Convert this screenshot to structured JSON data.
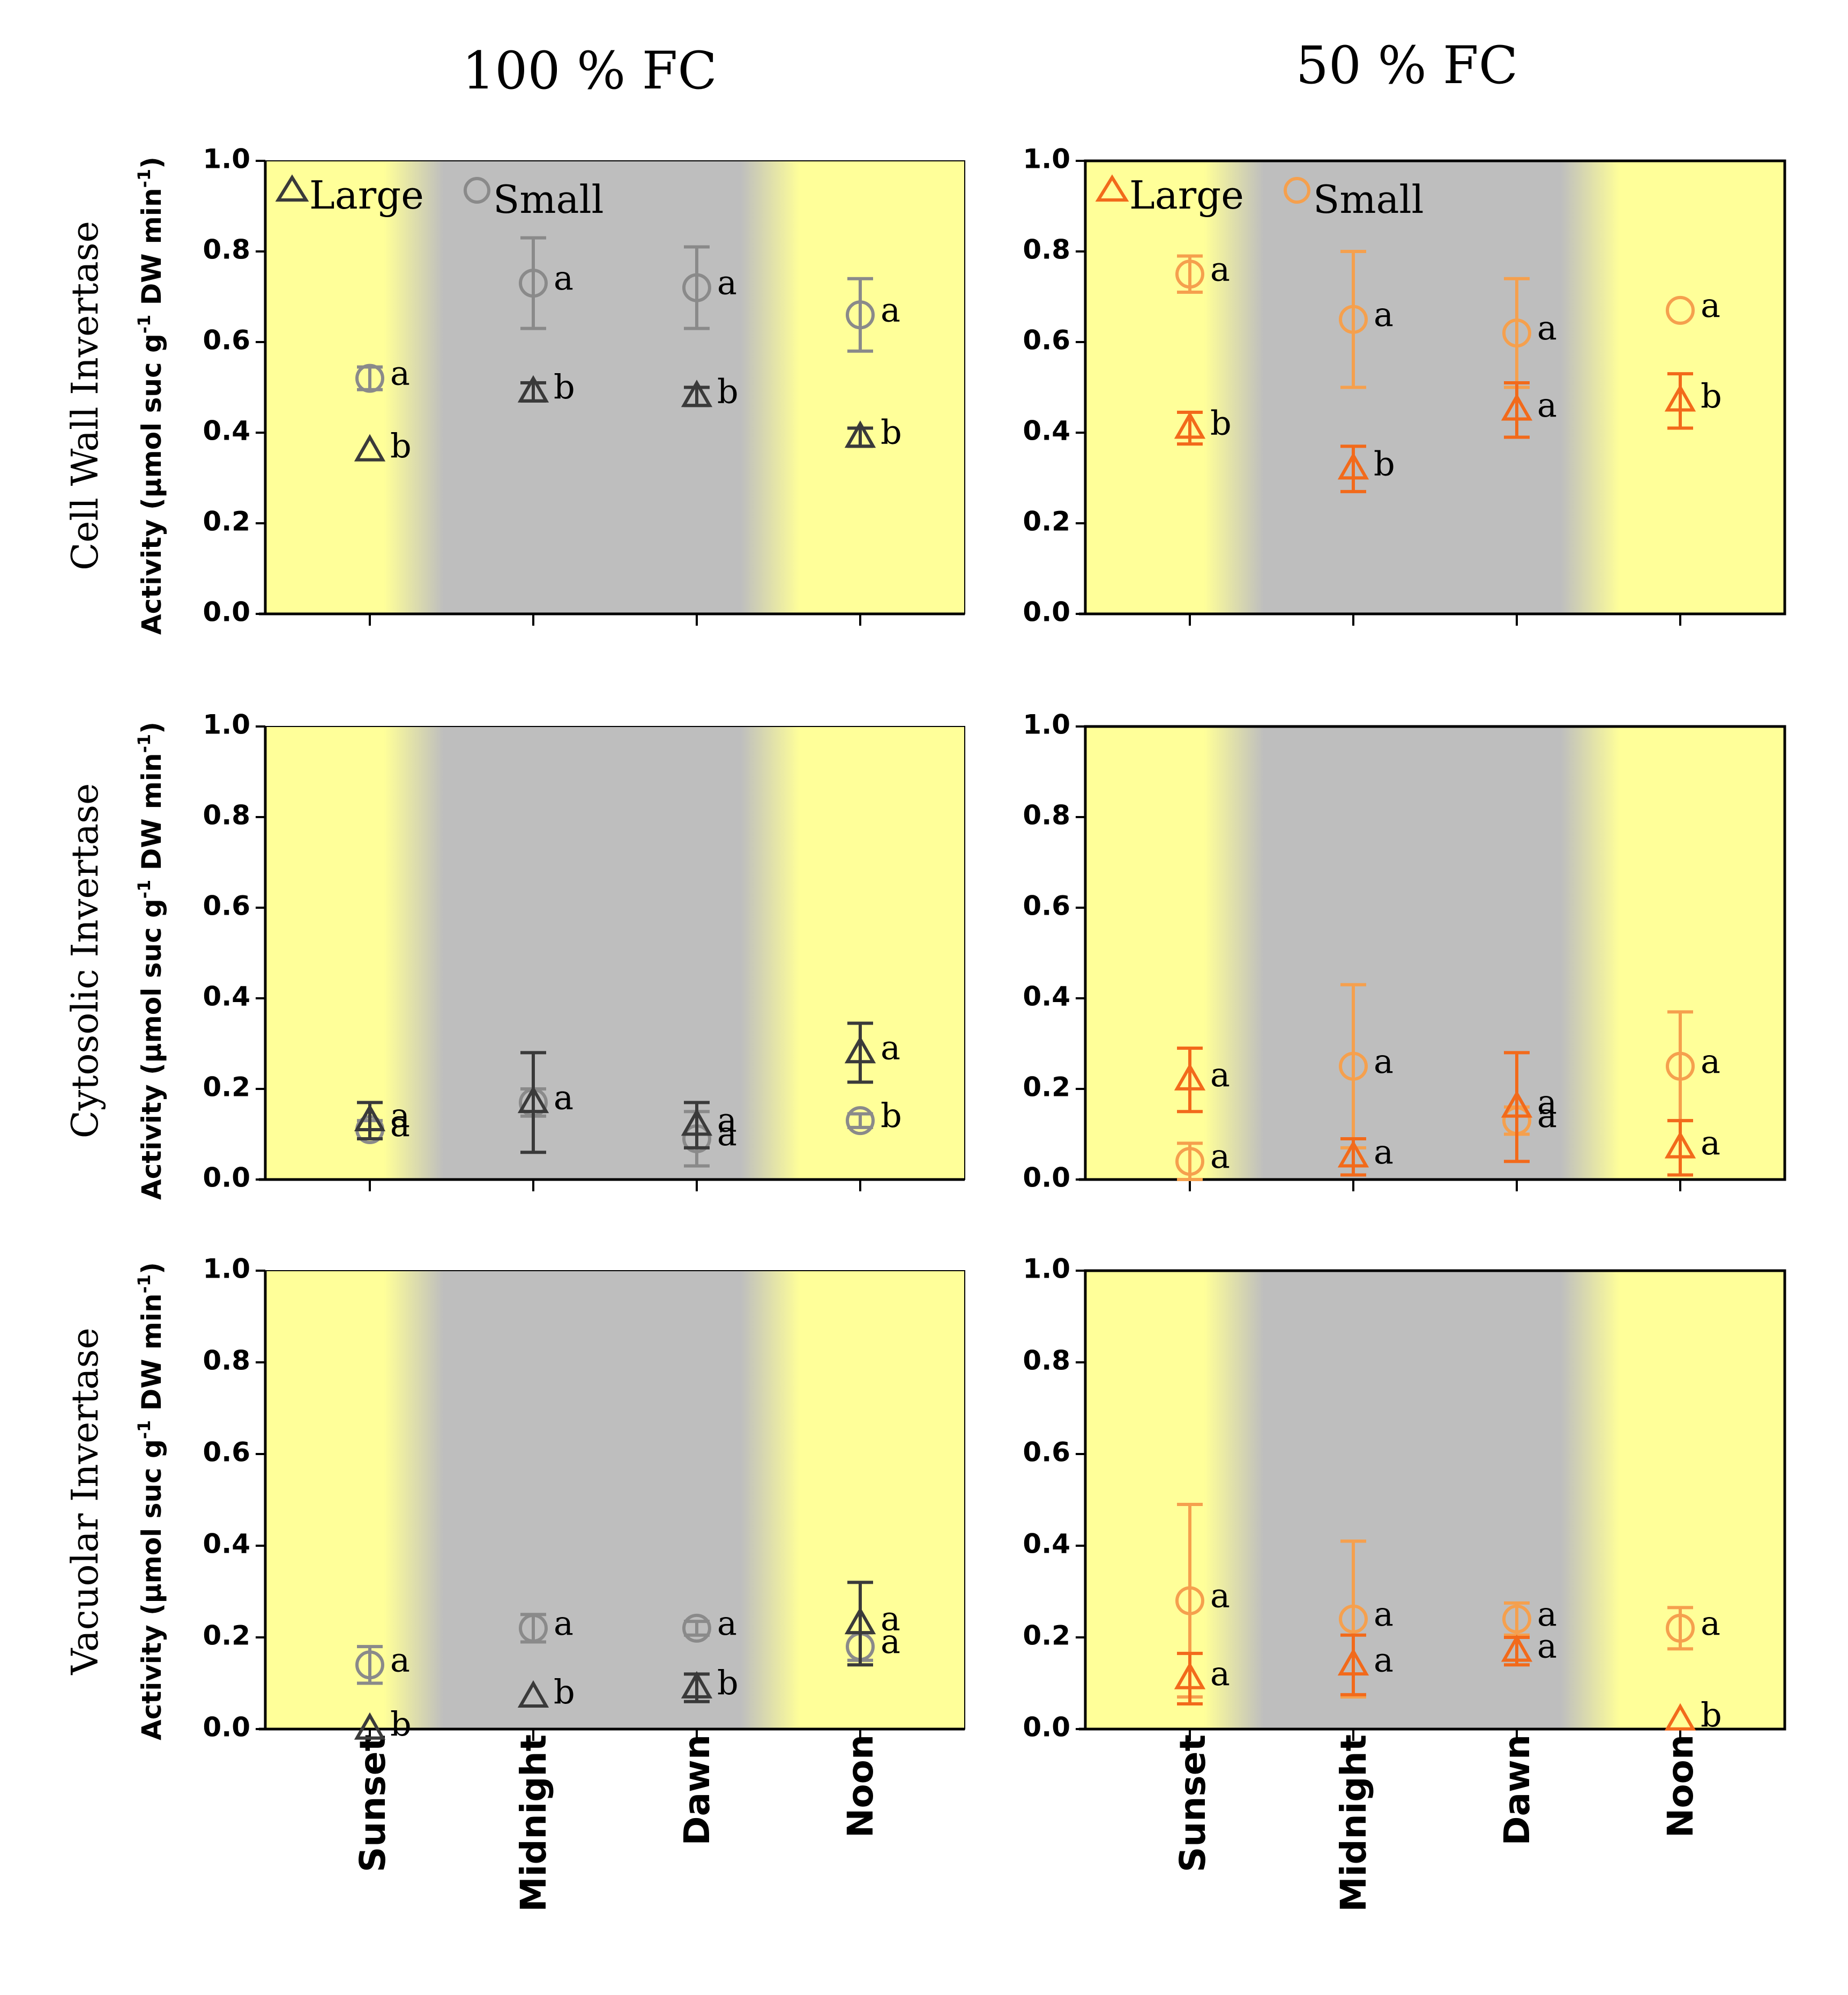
{
  "colors": {
    "day": "#FFFF99",
    "night": "#BEBEBE",
    "large_100": "#3A3A3A",
    "small_100": "#8A8A8A",
    "large_50": "#F26A1B",
    "small_50": "#F5A04E",
    "axis": "#000000"
  },
  "column_titles": [
    "100 % FC",
    "50 % FC"
  ],
  "row_labels": [
    "Cell Wall Invertase",
    "Cytosolic Invertase",
    "Vacuolar Invertase"
  ],
  "ylabel": "Activity (µmol suc g⁻¹ DW min⁻¹)",
  "ylabel_parts": {
    "a": "Activity (µmol suc g",
    "exp1": "-1",
    "b": " DW min",
    "exp2": "-1",
    "c": ")"
  },
  "categories": [
    "Sunset",
    "Midnight",
    "Dawn",
    "Noon"
  ],
  "ylim": [
    0,
    1.0
  ],
  "yticks": [
    "0.0",
    "0.2",
    "0.4",
    "0.6",
    "0.8",
    "1.0"
  ],
  "legend": {
    "large": "Large",
    "small": "Small"
  },
  "chart_data": [
    {
      "type": "scatter",
      "row": 0,
      "col": 0,
      "legend": "top-left",
      "series": [
        {
          "name": "Large",
          "marker": "triangle",
          "values": [
            0.36,
            0.49,
            0.48,
            0.39
          ],
          "errors": [
            0.0,
            0.02,
            0.02,
            0.02
          ],
          "letters": [
            "b",
            "b",
            "b",
            "b"
          ]
        },
        {
          "name": "Small",
          "marker": "circle",
          "values": [
            0.52,
            0.73,
            0.72,
            0.66
          ],
          "errors": [
            0.025,
            0.1,
            0.09,
            0.08
          ],
          "letters": [
            "a",
            "a",
            "a",
            "a"
          ]
        }
      ]
    },
    {
      "type": "scatter",
      "row": 0,
      "col": 1,
      "legend": "top-left",
      "series": [
        {
          "name": "Large",
          "marker": "triangle",
          "values": [
            0.41,
            0.32,
            0.45,
            0.47
          ],
          "errors": [
            0.035,
            0.05,
            0.06,
            0.06
          ],
          "letters": [
            "b",
            "b",
            "a",
            "b"
          ]
        },
        {
          "name": "Small",
          "marker": "circle",
          "values": [
            0.75,
            0.65,
            0.62,
            0.67
          ],
          "errors": [
            0.04,
            0.15,
            0.12,
            0.0
          ],
          "letters": [
            "a",
            "a",
            "a",
            "a"
          ]
        }
      ]
    },
    {
      "type": "scatter",
      "row": 1,
      "col": 0,
      "series": [
        {
          "name": "Large",
          "marker": "triangle",
          "values": [
            0.13,
            0.17,
            0.12,
            0.28
          ],
          "errors": [
            0.04,
            0.11,
            0.05,
            0.065
          ],
          "letters": [
            "a",
            "a",
            "a",
            "a"
          ]
        },
        {
          "name": "Small",
          "marker": "circle",
          "values": [
            0.11,
            0.17,
            0.09,
            0.13
          ],
          "errors": [
            0.02,
            0.03,
            0.06,
            0.015
          ],
          "letters": [
            "a",
            "a",
            "a",
            "b"
          ]
        }
      ]
    },
    {
      "type": "scatter",
      "row": 1,
      "col": 1,
      "series": [
        {
          "name": "Large",
          "marker": "triangle",
          "values": [
            0.22,
            0.05,
            0.16,
            0.07
          ],
          "errors": [
            0.07,
            0.04,
            0.12,
            0.06
          ],
          "letters": [
            "a",
            "a",
            "a",
            "a"
          ]
        },
        {
          "name": "Small",
          "marker": "circle",
          "values": [
            0.04,
            0.25,
            0.13,
            0.25
          ],
          "errors": [
            0.04,
            0.18,
            0.03,
            0.12
          ],
          "letters": [
            "a",
            "a",
            "a",
            "a"
          ]
        }
      ]
    },
    {
      "type": "scatter",
      "row": 2,
      "col": 0,
      "series": [
        {
          "name": "Large",
          "marker": "triangle",
          "values": [
            0.0,
            0.07,
            0.09,
            0.23
          ],
          "errors": [
            0.0,
            0.0,
            0.03,
            0.09
          ],
          "letters": [
            "b",
            "b",
            "b",
            "a"
          ]
        },
        {
          "name": "Small",
          "marker": "circle",
          "values": [
            0.14,
            0.22,
            0.22,
            0.18
          ],
          "errors": [
            0.04,
            0.03,
            0.015,
            0.03
          ],
          "letters": [
            "a",
            "a",
            "a",
            "a"
          ]
        }
      ]
    },
    {
      "type": "scatter",
      "row": 2,
      "col": 1,
      "series": [
        {
          "name": "Large",
          "marker": "triangle",
          "values": [
            0.11,
            0.14,
            0.17,
            0.02
          ],
          "errors": [
            0.055,
            0.065,
            0.03,
            0.0
          ],
          "letters": [
            "a",
            "a",
            "a",
            "b"
          ]
        },
        {
          "name": "Small",
          "marker": "circle",
          "values": [
            0.28,
            0.24,
            0.24,
            0.22
          ],
          "errors": [
            0.21,
            0.17,
            0.035,
            0.045
          ],
          "letters": [
            "a",
            "a",
            "a",
            "a"
          ]
        }
      ]
    }
  ]
}
